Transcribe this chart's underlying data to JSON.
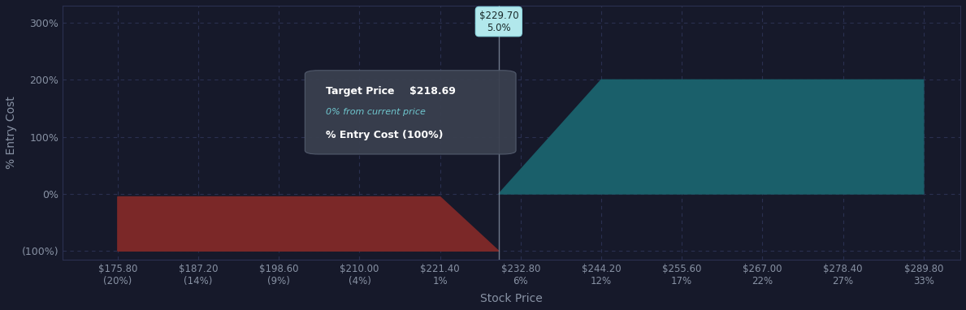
{
  "bg_color": "#16192a",
  "plot_bg_color": "#16192a",
  "grid_color": "#2a3050",
  "tick_color": "#8892a4",
  "ylabel": "% Entry Cost",
  "xlabel": "Stock Price",
  "yticks": [
    -100,
    0,
    100,
    200,
    300
  ],
  "ytick_labels": [
    "(100%)",
    "0%",
    "100%",
    "200%",
    "300%"
  ],
  "ylim": [
    -115,
    330
  ],
  "x_prices": [
    175.8,
    187.2,
    198.6,
    210.0,
    221.4,
    232.8,
    244.2,
    255.6,
    267.0,
    278.4,
    289.8
  ],
  "x_pcts": [
    "(20%)",
    "(14%)",
    "(9%)",
    "(4%)",
    "1%",
    "6%",
    "12%",
    "17%",
    "22%",
    "27%",
    "33%"
  ],
  "xlim": [
    168.0,
    295.0
  ],
  "loss_color": "#7b2828",
  "gain_color": "#1a5f6a",
  "loss_poly_x": [
    175.8,
    221.4,
    229.7,
    229.7,
    175.8
  ],
  "loss_poly_y": [
    -5,
    -5,
    -100,
    -100,
    -100
  ],
  "gain_poly_x": [
    229.7,
    244.2,
    289.8,
    289.8,
    229.7
  ],
  "gain_poly_y": [
    0,
    200,
    200,
    0,
    0
  ],
  "vline_x": 229.7,
  "tooltip1_text": "$229.70\n5.0%",
  "tooltip1_bg": "#b2e8ec",
  "tooltip1_color": "#1a2a2a",
  "tooltip2_box_color": "#3a404f",
  "tooltip2_line1_left": "Target Price ",
  "tooltip2_line1_right": "$218.69",
  "tooltip2_line2": "0% from current price",
  "tooltip2_line3": "% Entry Cost (100%)"
}
